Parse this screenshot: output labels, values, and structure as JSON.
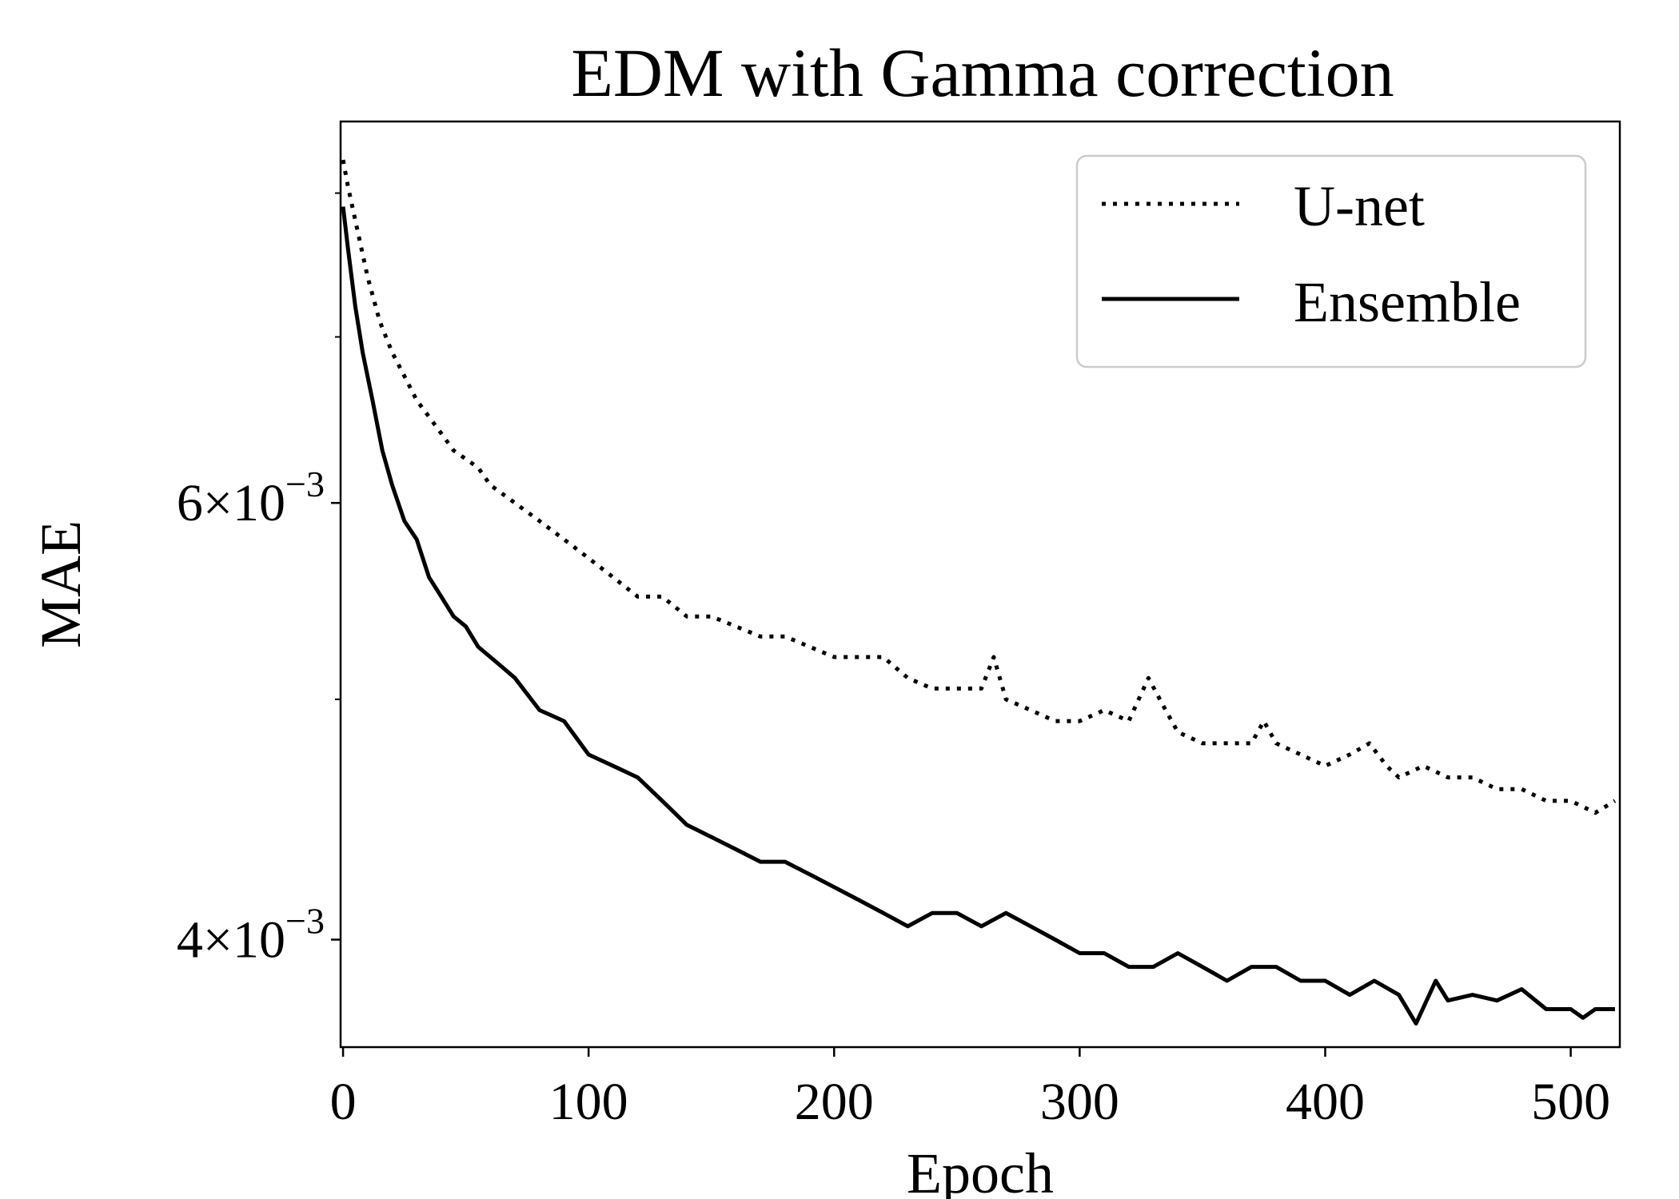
{
  "chart_data": {
    "type": "line",
    "title": "EDM with Gamma correction",
    "xlabel": "Epoch",
    "ylabel": "MAE",
    "yscale": "log",
    "xlim": [
      -1,
      520
    ],
    "ylim": [
      0.00362,
      0.00855
    ],
    "grid": false,
    "legend_position": "top-right",
    "x_ticks": [
      {
        "value": 0,
        "label": "0"
      },
      {
        "value": 100,
        "label": "100"
      },
      {
        "value": 200,
        "label": "200"
      },
      {
        "value": 300,
        "label": "300"
      },
      {
        "value": 400,
        "label": "400"
      },
      {
        "value": 500,
        "label": "500"
      }
    ],
    "y_ticks": [
      {
        "value": 0.004,
        "label": "4×10⁻³",
        "mantissa": "4",
        "times": "×",
        "base": "10",
        "exponent": "−3"
      },
      {
        "value": 0.006,
        "label": "6×10⁻³",
        "mantissa": "6",
        "times": "×",
        "base": "10",
        "exponent": "−3"
      }
    ],
    "y_minor_ticks": [
      0.005,
      0.007,
      0.008
    ],
    "series": [
      {
        "name": "U-net",
        "style": "dotted",
        "color": "#000000",
        "x": [
          0,
          2,
          5,
          10,
          15,
          20,
          25,
          30,
          35,
          40,
          45,
          50,
          55,
          60,
          65,
          70,
          75,
          80,
          85,
          90,
          95,
          100,
          110,
          120,
          130,
          140,
          150,
          160,
          170,
          180,
          190,
          200,
          210,
          220,
          230,
          240,
          250,
          260,
          265,
          270,
          280,
          290,
          300,
          310,
          320,
          328,
          335,
          340,
          350,
          360,
          370,
          375,
          380,
          390,
          400,
          410,
          418,
          425,
          430,
          440,
          450,
          460,
          470,
          480,
          490,
          500,
          510,
          518
        ],
        "values": [
          0.00825,
          0.00805,
          0.0078,
          0.0074,
          0.0071,
          0.0069,
          0.00675,
          0.0066,
          0.0065,
          0.0064,
          0.0063,
          0.00625,
          0.0062,
          0.0061,
          0.00605,
          0.006,
          0.00595,
          0.0059,
          0.00585,
          0.0058,
          0.00575,
          0.0057,
          0.0056,
          0.0055,
          0.0055,
          0.0054,
          0.0054,
          0.00535,
          0.0053,
          0.0053,
          0.00525,
          0.0052,
          0.0052,
          0.0052,
          0.0051,
          0.00505,
          0.00505,
          0.00505,
          0.0052,
          0.005,
          0.00495,
          0.0049,
          0.0049,
          0.00495,
          0.0049,
          0.0051,
          0.00495,
          0.00485,
          0.0048,
          0.0048,
          0.0048,
          0.0049,
          0.0048,
          0.00475,
          0.0047,
          0.00475,
          0.0048,
          0.0047,
          0.00465,
          0.0047,
          0.00465,
          0.00465,
          0.0046,
          0.0046,
          0.00455,
          0.00455,
          0.0045,
          0.00455
        ]
      },
      {
        "name": "Ensemble",
        "style": "solid",
        "color": "#000000",
        "x": [
          0,
          2,
          5,
          8,
          12,
          16,
          20,
          25,
          30,
          35,
          40,
          45,
          50,
          55,
          60,
          65,
          70,
          80,
          90,
          100,
          110,
          120,
          130,
          140,
          150,
          160,
          170,
          180,
          190,
          200,
          210,
          220,
          230,
          240,
          250,
          260,
          270,
          280,
          290,
          300,
          310,
          320,
          330,
          340,
          350,
          360,
          370,
          380,
          390,
          400,
          410,
          420,
          430,
          437,
          445,
          450,
          460,
          470,
          480,
          490,
          500,
          505,
          510,
          518
        ],
        "values": [
          0.0079,
          0.0076,
          0.0072,
          0.0069,
          0.0066,
          0.0063,
          0.0061,
          0.0059,
          0.0058,
          0.0056,
          0.0055,
          0.0054,
          0.00535,
          0.00525,
          0.0052,
          0.00515,
          0.0051,
          0.00495,
          0.0049,
          0.00475,
          0.0047,
          0.00465,
          0.00455,
          0.00445,
          0.0044,
          0.00435,
          0.0043,
          0.0043,
          0.00425,
          0.0042,
          0.00415,
          0.0041,
          0.00405,
          0.0041,
          0.0041,
          0.00405,
          0.0041,
          0.00405,
          0.004,
          0.00395,
          0.00395,
          0.0039,
          0.0039,
          0.00395,
          0.0039,
          0.00385,
          0.0039,
          0.0039,
          0.00385,
          0.00385,
          0.0038,
          0.00385,
          0.0038,
          0.0037,
          0.00385,
          0.00378,
          0.0038,
          0.00378,
          0.00382,
          0.00375,
          0.00375,
          0.00372,
          0.00375,
          0.00375
        ]
      }
    ]
  }
}
